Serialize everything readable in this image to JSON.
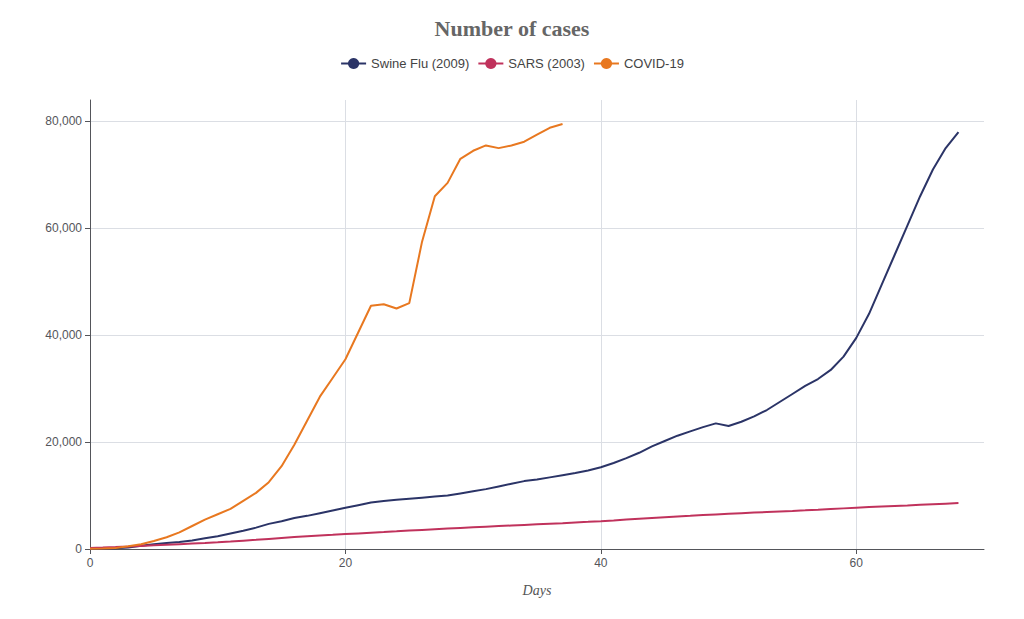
{
  "chart_data": {
    "type": "line",
    "title": "Number of cases",
    "xlabel": "Days",
    "series": [
      {
        "name": "Swine Flu (2009)",
        "color": "#2b3467",
        "x": [
          0,
          1,
          2,
          3,
          4,
          5,
          6,
          7,
          8,
          9,
          10,
          11,
          12,
          13,
          14,
          15,
          16,
          17,
          18,
          19,
          20,
          21,
          22,
          23,
          24,
          25,
          26,
          27,
          28,
          29,
          30,
          31,
          32,
          33,
          34,
          35,
          36,
          37,
          38,
          39,
          40,
          41,
          42,
          43,
          44,
          45,
          46,
          47,
          48,
          49,
          50,
          51,
          52,
          53,
          54,
          55,
          56,
          57,
          58,
          59,
          60,
          61,
          62,
          63,
          64,
          65,
          66,
          67,
          68
        ],
        "values": [
          20,
          50,
          150,
          300,
          600,
          900,
          1100,
          1300,
          1600,
          2000,
          2400,
          2900,
          3400,
          4000,
          4700,
          5200,
          5800,
          6200,
          6700,
          7200,
          7700,
          8200,
          8700,
          9000,
          9200,
          9400,
          9600,
          9800,
          10000,
          10400,
          10800,
          11200,
          11700,
          12200,
          12700,
          13000,
          13400,
          13800,
          14200,
          14700,
          15300,
          16100,
          17000,
          18000,
          19200,
          20200,
          21200,
          22000,
          22800,
          23500,
          23000,
          23800,
          24800,
          26000,
          27500,
          29000,
          30500,
          31800,
          33500,
          36000,
          39500,
          44000,
          49500,
          55000,
          60500,
          66000,
          71000,
          75000,
          78000
        ]
      },
      {
        "name": "SARS (2003)",
        "color": "#c0325c",
        "x": [
          0,
          1,
          2,
          3,
          4,
          5,
          6,
          7,
          8,
          9,
          10,
          11,
          12,
          13,
          14,
          15,
          16,
          17,
          18,
          19,
          20,
          21,
          22,
          23,
          24,
          25,
          26,
          27,
          28,
          29,
          30,
          31,
          32,
          33,
          34,
          35,
          36,
          37,
          38,
          39,
          40,
          41,
          42,
          43,
          44,
          45,
          46,
          47,
          48,
          49,
          50,
          51,
          52,
          53,
          54,
          55,
          56,
          57,
          58,
          59,
          60,
          61,
          62,
          63,
          64,
          65,
          66,
          67,
          68
        ],
        "values": [
          200,
          280,
          370,
          470,
          580,
          690,
          800,
          910,
          1020,
          1130,
          1250,
          1400,
          1560,
          1720,
          1890,
          2060,
          2230,
          2380,
          2530,
          2650,
          2790,
          2920,
          3050,
          3170,
          3300,
          3440,
          3570,
          3700,
          3820,
          3940,
          4060,
          4180,
          4290,
          4400,
          4510,
          4620,
          4730,
          4840,
          4960,
          5080,
          5210,
          5350,
          5500,
          5650,
          5800,
          5950,
          6090,
          6210,
          6340,
          6460,
          6580,
          6700,
          6810,
          6920,
          7020,
          7120,
          7230,
          7350,
          7480,
          7600,
          7720,
          7840,
          7940,
          8040,
          8140,
          8260,
          8370,
          8480,
          8590
        ]
      },
      {
        "name": "COVID-19",
        "color": "#e87820",
        "x": [
          0,
          1,
          2,
          3,
          4,
          5,
          6,
          7,
          8,
          9,
          10,
          11,
          12,
          13,
          14,
          15,
          16,
          17,
          18,
          19,
          20,
          21,
          22,
          23,
          24,
          25,
          26,
          27,
          28,
          29,
          30,
          31,
          32,
          33,
          34,
          35,
          36,
          37
        ],
        "values": [
          50,
          100,
          200,
          500,
          900,
          1500,
          2200,
          3100,
          4300,
          5500,
          6500,
          7500,
          9000,
          10500,
          12500,
          15500,
          19500,
          24000,
          28500,
          32000,
          35500,
          40500,
          45500,
          45800,
          45000,
          46000,
          57500,
          66000,
          68500,
          73000,
          74500,
          75500,
          75000,
          75500,
          76200,
          77500,
          78800,
          79500
        ]
      }
    ],
    "xlim": [
      0,
      70
    ],
    "xticks": [
      0,
      20,
      40,
      60
    ],
    "ylim": [
      0,
      84000
    ],
    "yticks": [
      0,
      {
        "value": 20000,
        "label": "20,000"
      },
      {
        "value": 40000,
        "label": "40,000"
      },
      {
        "value": 60000,
        "label": "60,000"
      },
      {
        "value": 80000,
        "label": "80,000"
      }
    ],
    "grid": true,
    "legend": "top"
  }
}
